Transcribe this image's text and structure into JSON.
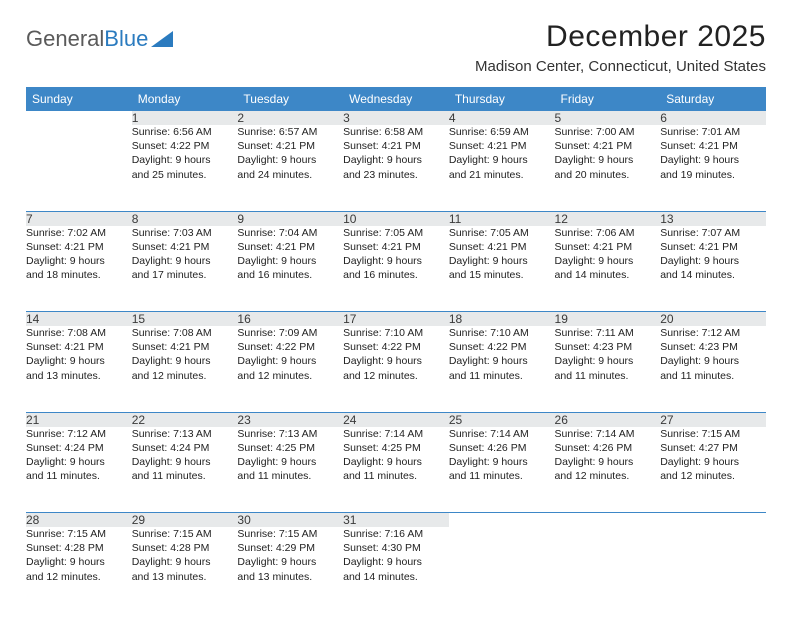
{
  "logo": {
    "text_gray": "General",
    "text_blue": "Blue"
  },
  "title": "December 2025",
  "location": "Madison Center, Connecticut, United States",
  "header_bg": "#3d87c7",
  "daynum_bg": "#e7e9ea",
  "weekdays": [
    "Sunday",
    "Monday",
    "Tuesday",
    "Wednesday",
    "Thursday",
    "Friday",
    "Saturday"
  ],
  "weeks": [
    {
      "nums": [
        "",
        "1",
        "2",
        "3",
        "4",
        "5",
        "6"
      ],
      "cells": [
        {
          "empty": true
        },
        {
          "sunrise": "Sunrise: 6:56 AM",
          "sunset": "Sunset: 4:22 PM",
          "day1": "Daylight: 9 hours",
          "day2": "and 25 minutes."
        },
        {
          "sunrise": "Sunrise: 6:57 AM",
          "sunset": "Sunset: 4:21 PM",
          "day1": "Daylight: 9 hours",
          "day2": "and 24 minutes."
        },
        {
          "sunrise": "Sunrise: 6:58 AM",
          "sunset": "Sunset: 4:21 PM",
          "day1": "Daylight: 9 hours",
          "day2": "and 23 minutes."
        },
        {
          "sunrise": "Sunrise: 6:59 AM",
          "sunset": "Sunset: 4:21 PM",
          "day1": "Daylight: 9 hours",
          "day2": "and 21 minutes."
        },
        {
          "sunrise": "Sunrise: 7:00 AM",
          "sunset": "Sunset: 4:21 PM",
          "day1": "Daylight: 9 hours",
          "day2": "and 20 minutes."
        },
        {
          "sunrise": "Sunrise: 7:01 AM",
          "sunset": "Sunset: 4:21 PM",
          "day1": "Daylight: 9 hours",
          "day2": "and 19 minutes."
        }
      ]
    },
    {
      "nums": [
        "7",
        "8",
        "9",
        "10",
        "11",
        "12",
        "13"
      ],
      "cells": [
        {
          "sunrise": "Sunrise: 7:02 AM",
          "sunset": "Sunset: 4:21 PM",
          "day1": "Daylight: 9 hours",
          "day2": "and 18 minutes."
        },
        {
          "sunrise": "Sunrise: 7:03 AM",
          "sunset": "Sunset: 4:21 PM",
          "day1": "Daylight: 9 hours",
          "day2": "and 17 minutes."
        },
        {
          "sunrise": "Sunrise: 7:04 AM",
          "sunset": "Sunset: 4:21 PM",
          "day1": "Daylight: 9 hours",
          "day2": "and 16 minutes."
        },
        {
          "sunrise": "Sunrise: 7:05 AM",
          "sunset": "Sunset: 4:21 PM",
          "day1": "Daylight: 9 hours",
          "day2": "and 16 minutes."
        },
        {
          "sunrise": "Sunrise: 7:05 AM",
          "sunset": "Sunset: 4:21 PM",
          "day1": "Daylight: 9 hours",
          "day2": "and 15 minutes."
        },
        {
          "sunrise": "Sunrise: 7:06 AM",
          "sunset": "Sunset: 4:21 PM",
          "day1": "Daylight: 9 hours",
          "day2": "and 14 minutes."
        },
        {
          "sunrise": "Sunrise: 7:07 AM",
          "sunset": "Sunset: 4:21 PM",
          "day1": "Daylight: 9 hours",
          "day2": "and 14 minutes."
        }
      ]
    },
    {
      "nums": [
        "14",
        "15",
        "16",
        "17",
        "18",
        "19",
        "20"
      ],
      "cells": [
        {
          "sunrise": "Sunrise: 7:08 AM",
          "sunset": "Sunset: 4:21 PM",
          "day1": "Daylight: 9 hours",
          "day2": "and 13 minutes."
        },
        {
          "sunrise": "Sunrise: 7:08 AM",
          "sunset": "Sunset: 4:21 PM",
          "day1": "Daylight: 9 hours",
          "day2": "and 12 minutes."
        },
        {
          "sunrise": "Sunrise: 7:09 AM",
          "sunset": "Sunset: 4:22 PM",
          "day1": "Daylight: 9 hours",
          "day2": "and 12 minutes."
        },
        {
          "sunrise": "Sunrise: 7:10 AM",
          "sunset": "Sunset: 4:22 PM",
          "day1": "Daylight: 9 hours",
          "day2": "and 12 minutes."
        },
        {
          "sunrise": "Sunrise: 7:10 AM",
          "sunset": "Sunset: 4:22 PM",
          "day1": "Daylight: 9 hours",
          "day2": "and 11 minutes."
        },
        {
          "sunrise": "Sunrise: 7:11 AM",
          "sunset": "Sunset: 4:23 PM",
          "day1": "Daylight: 9 hours",
          "day2": "and 11 minutes."
        },
        {
          "sunrise": "Sunrise: 7:12 AM",
          "sunset": "Sunset: 4:23 PM",
          "day1": "Daylight: 9 hours",
          "day2": "and 11 minutes."
        }
      ]
    },
    {
      "nums": [
        "21",
        "22",
        "23",
        "24",
        "25",
        "26",
        "27"
      ],
      "cells": [
        {
          "sunrise": "Sunrise: 7:12 AM",
          "sunset": "Sunset: 4:24 PM",
          "day1": "Daylight: 9 hours",
          "day2": "and 11 minutes."
        },
        {
          "sunrise": "Sunrise: 7:13 AM",
          "sunset": "Sunset: 4:24 PM",
          "day1": "Daylight: 9 hours",
          "day2": "and 11 minutes."
        },
        {
          "sunrise": "Sunrise: 7:13 AM",
          "sunset": "Sunset: 4:25 PM",
          "day1": "Daylight: 9 hours",
          "day2": "and 11 minutes."
        },
        {
          "sunrise": "Sunrise: 7:14 AM",
          "sunset": "Sunset: 4:25 PM",
          "day1": "Daylight: 9 hours",
          "day2": "and 11 minutes."
        },
        {
          "sunrise": "Sunrise: 7:14 AM",
          "sunset": "Sunset: 4:26 PM",
          "day1": "Daylight: 9 hours",
          "day2": "and 11 minutes."
        },
        {
          "sunrise": "Sunrise: 7:14 AM",
          "sunset": "Sunset: 4:26 PM",
          "day1": "Daylight: 9 hours",
          "day2": "and 12 minutes."
        },
        {
          "sunrise": "Sunrise: 7:15 AM",
          "sunset": "Sunset: 4:27 PM",
          "day1": "Daylight: 9 hours",
          "day2": "and 12 minutes."
        }
      ]
    },
    {
      "nums": [
        "28",
        "29",
        "30",
        "31",
        "",
        "",
        ""
      ],
      "cells": [
        {
          "sunrise": "Sunrise: 7:15 AM",
          "sunset": "Sunset: 4:28 PM",
          "day1": "Daylight: 9 hours",
          "day2": "and 12 minutes."
        },
        {
          "sunrise": "Sunrise: 7:15 AM",
          "sunset": "Sunset: 4:28 PM",
          "day1": "Daylight: 9 hours",
          "day2": "and 13 minutes."
        },
        {
          "sunrise": "Sunrise: 7:15 AM",
          "sunset": "Sunset: 4:29 PM",
          "day1": "Daylight: 9 hours",
          "day2": "and 13 minutes."
        },
        {
          "sunrise": "Sunrise: 7:16 AM",
          "sunset": "Sunset: 4:30 PM",
          "day1": "Daylight: 9 hours",
          "day2": "and 14 minutes."
        },
        {
          "empty": true
        },
        {
          "empty": true
        },
        {
          "empty": true
        }
      ]
    }
  ]
}
